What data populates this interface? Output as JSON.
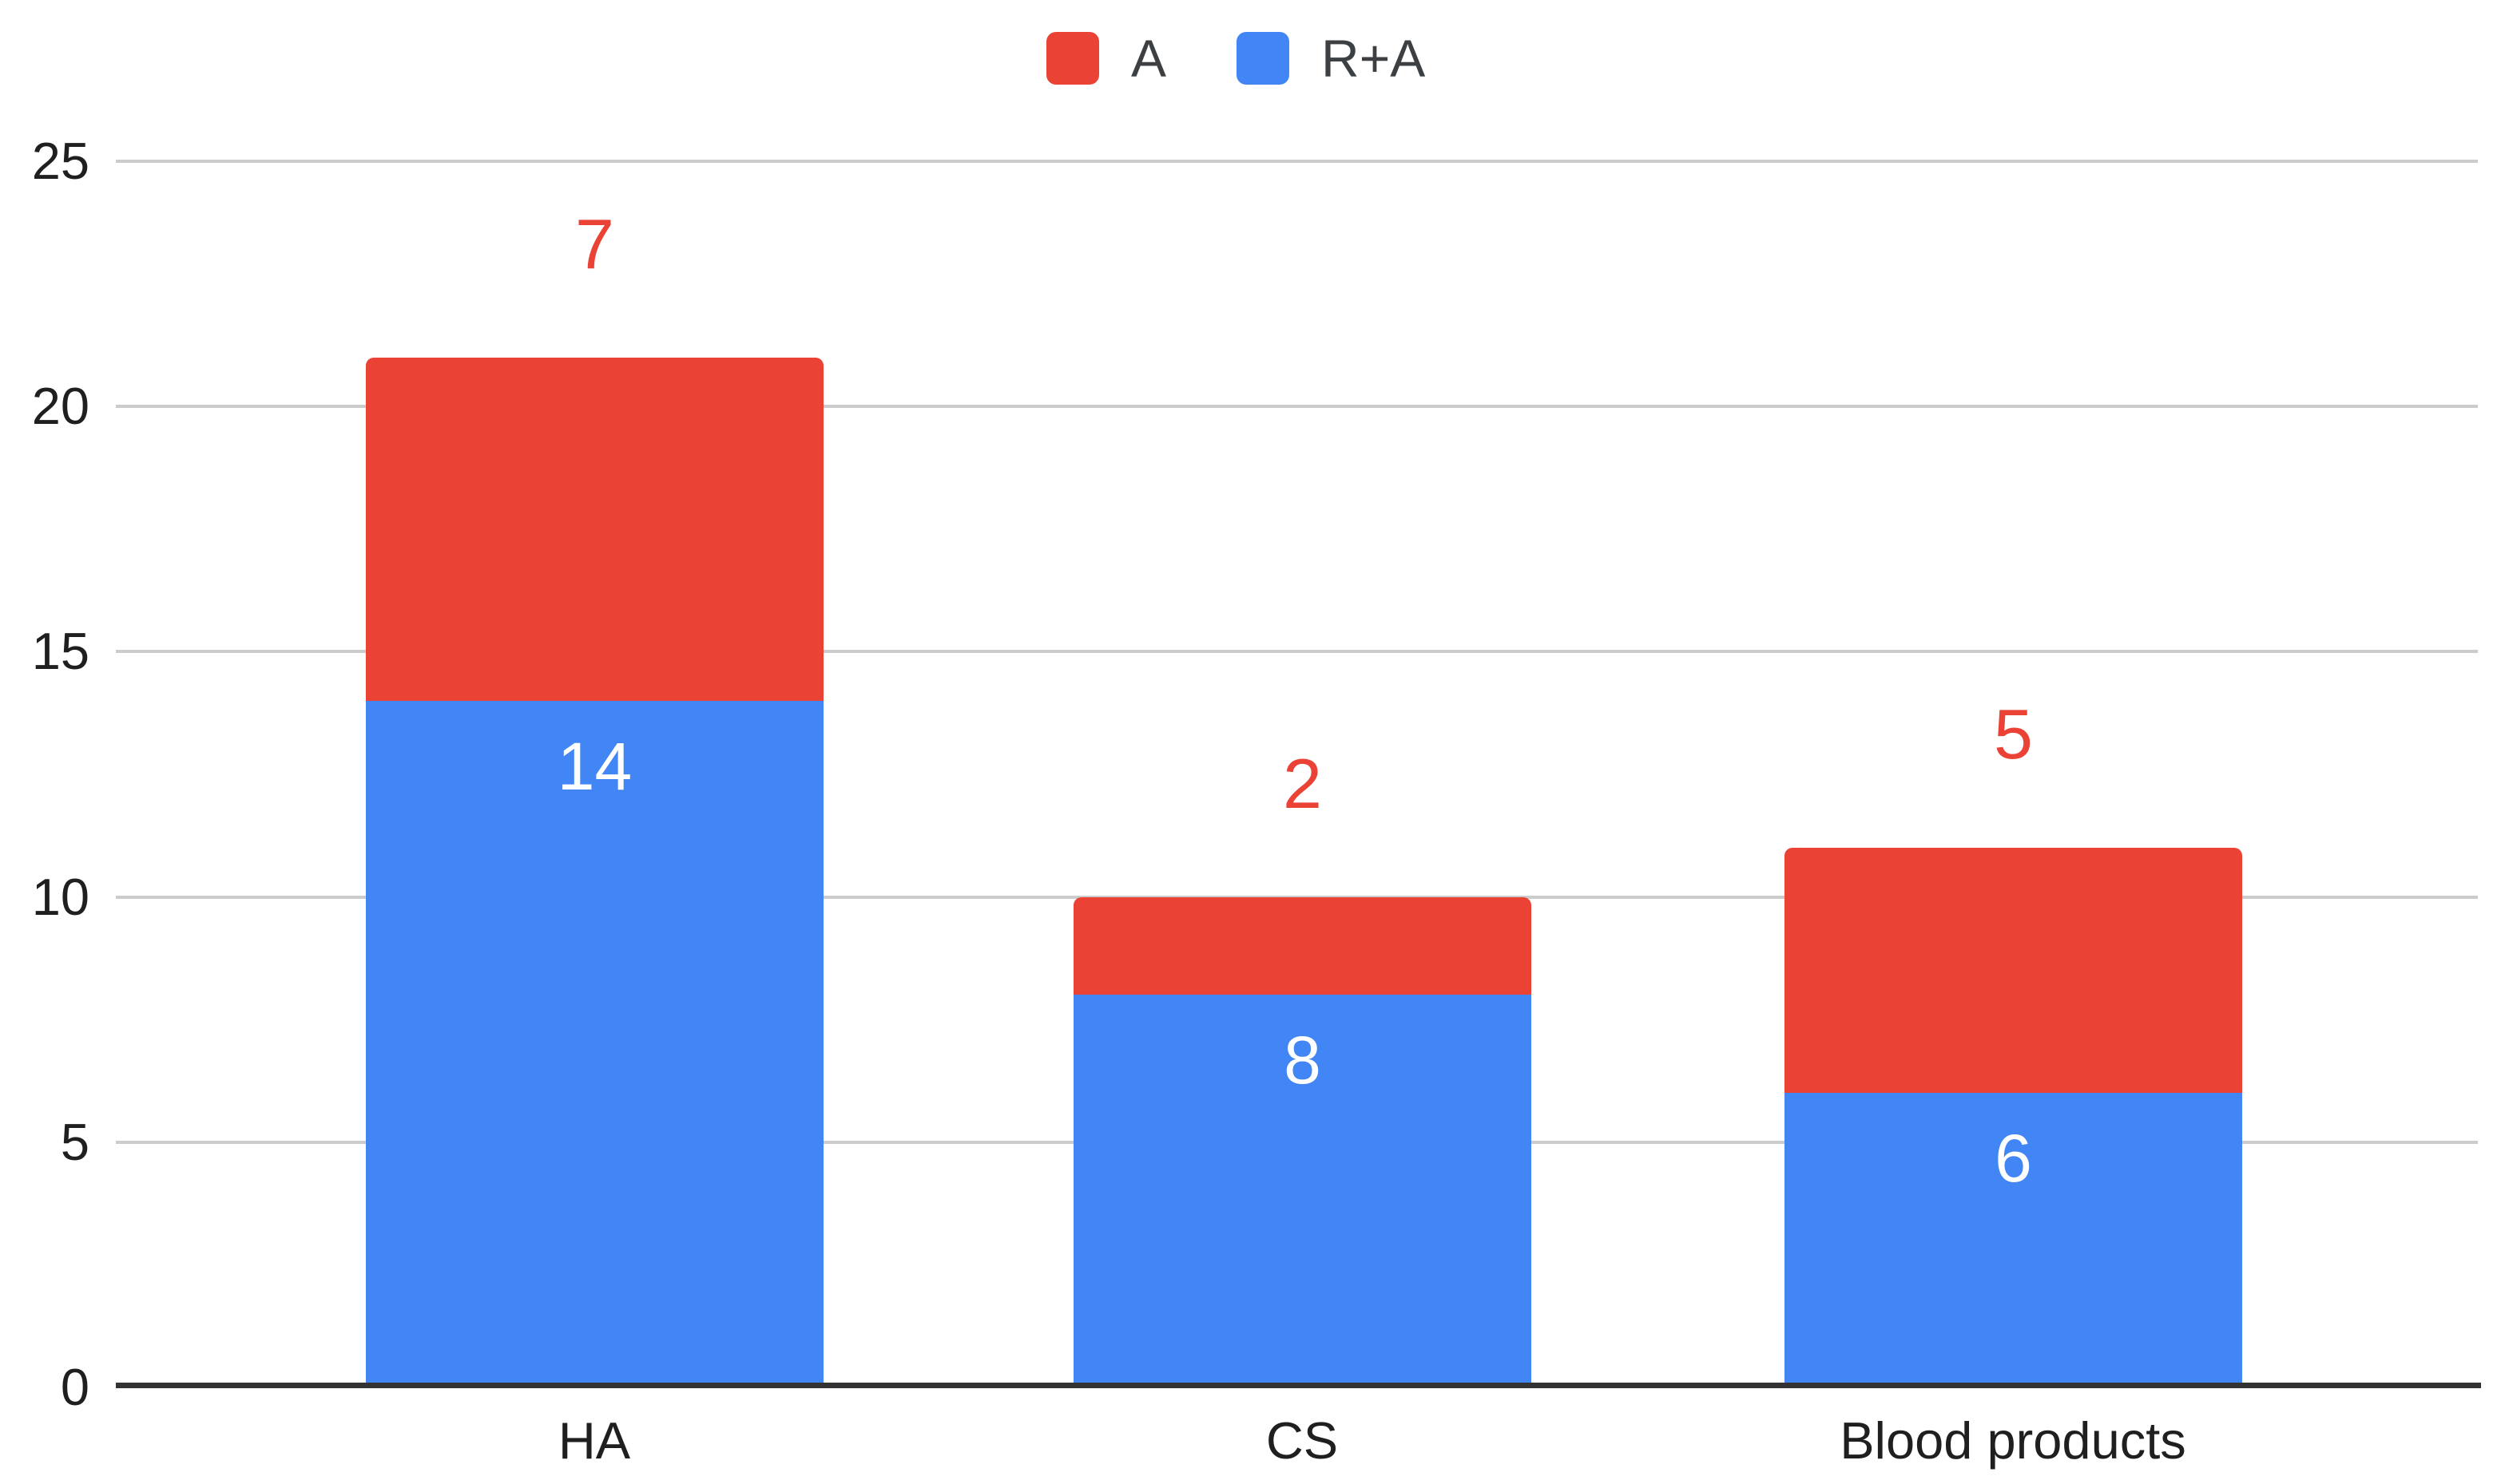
{
  "legend": {
    "items": [
      {
        "label": "A",
        "color": "#EA4335"
      },
      {
        "label": "R+A",
        "color": "#4285F4"
      }
    ]
  },
  "chart_data": {
    "type": "bar",
    "stacked": true,
    "categories": [
      "HA",
      "CS",
      "Blood products"
    ],
    "series": [
      {
        "name": "R+A",
        "color": "#4285F4",
        "values": [
          14,
          8,
          6
        ]
      },
      {
        "name": "A",
        "color": "#EA4335",
        "values": [
          7,
          2,
          5
        ]
      }
    ],
    "stack_totals": [
      21,
      10,
      11
    ],
    "data_labels": {
      "ra_labels": [
        "14",
        "8",
        "6"
      ],
      "ra_placement": "inside top of blue segment, white text",
      "a_labels": [
        "7",
        "2",
        "5"
      ],
      "a_placement": "above bar top, red text"
    },
    "title": "",
    "xlabel": "",
    "ylabel": "",
    "yticks": [
      0,
      5,
      10,
      15,
      20,
      25
    ],
    "ylim": [
      0,
      25
    ],
    "grid": true,
    "legend_position": "top-center"
  }
}
